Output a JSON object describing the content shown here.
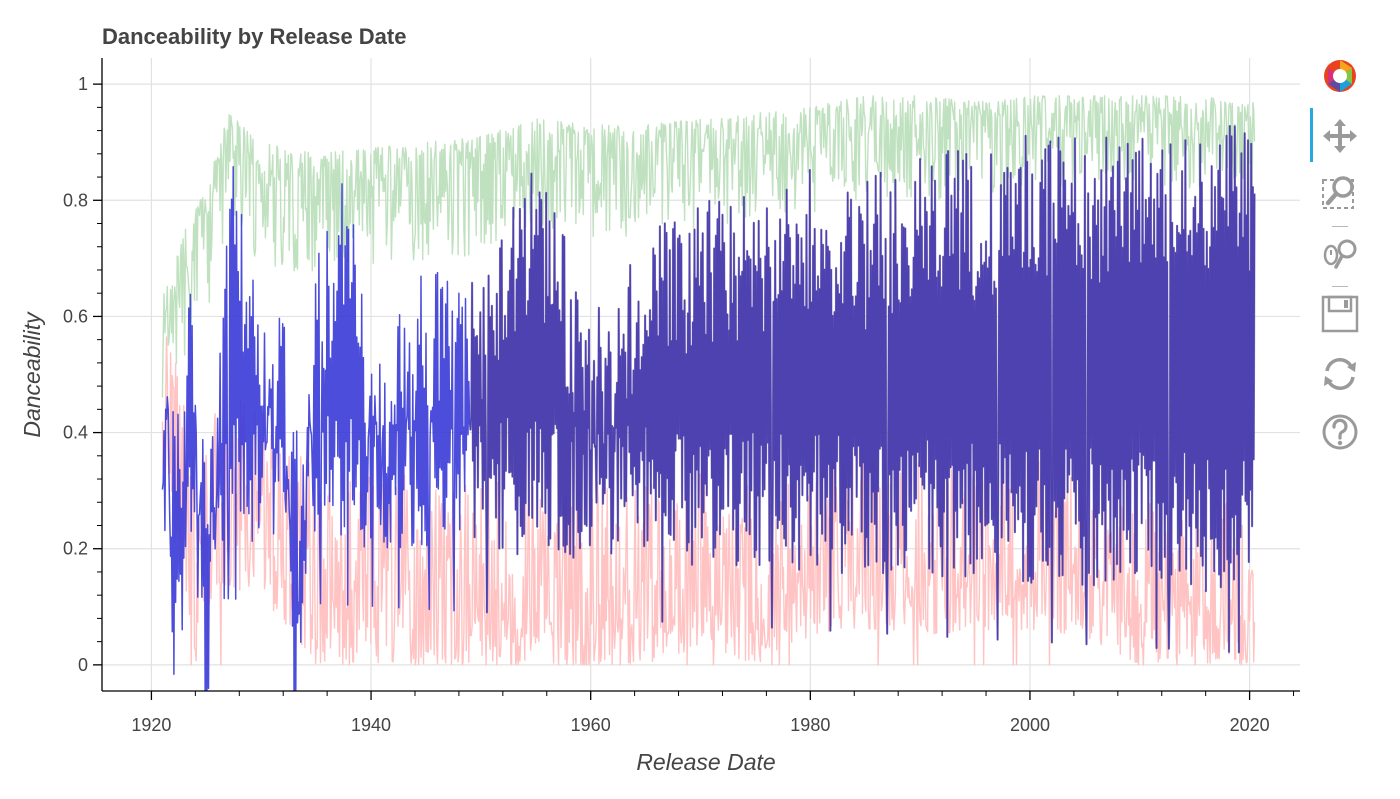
{
  "toolbar": {
    "tools": [
      {
        "name": "Bokeh logo",
        "icon": "bokeh-logo-icon",
        "active": false
      },
      {
        "name": "Pan",
        "icon": "pan-icon",
        "active": true
      },
      {
        "name": "Box Zoom",
        "icon": "box-zoom-icon",
        "active": false
      },
      {
        "name": "Wheel Zoom",
        "icon": "wheel-zoom-icon",
        "active": false
      },
      {
        "name": "Save",
        "icon": "save-icon",
        "active": false
      },
      {
        "name": "Reset",
        "icon": "reset-icon",
        "active": false
      },
      {
        "name": "Help",
        "icon": "help-icon",
        "active": false
      }
    ]
  },
  "chart_data": {
    "type": "line",
    "title": "Danceability by Release Date",
    "xlabel": "Release Date",
    "ylabel": "Danceability",
    "xlim": [
      1915.5,
      2025.5
    ],
    "ylim": [
      -0.045,
      1.045
    ],
    "x_ticks": [
      "1920",
      "1940",
      "1960",
      "1980",
      "2000",
      "2020"
    ],
    "y_ticks": [
      "0",
      "0.2",
      "0.4",
      "0.6",
      "0.8",
      "1"
    ],
    "grid": true,
    "legend": "none",
    "x_range_of_series": [
      1921,
      2020.5
    ],
    "colors": {
      "max": "#bcdfbc",
      "min": "#ffc0c0",
      "mean": "#3a3ad8",
      "overlay": "#4f3b8c"
    },
    "series": [
      {
        "color": "#bcdfbc",
        "values": [
          [
            1921,
            0.66
          ],
          [
            1922,
            0.71
          ],
          [
            1925,
            0.82
          ],
          [
            1927,
            0.95
          ],
          [
            1930,
            0.9
          ],
          [
            1935,
            0.88
          ],
          [
            1940,
            0.89
          ],
          [
            1945,
            0.9
          ],
          [
            1950,
            0.91
          ],
          [
            1955,
            0.94
          ],
          [
            1960,
            0.93
          ],
          [
            1965,
            0.93
          ],
          [
            1970,
            0.94
          ],
          [
            1975,
            0.95
          ],
          [
            1980,
            0.96
          ],
          [
            1985,
            0.98
          ],
          [
            1990,
            0.98
          ],
          [
            1995,
            0.97
          ],
          [
            2000,
            0.98
          ],
          [
            2005,
            0.98
          ],
          [
            2010,
            0.98
          ],
          [
            2015,
            0.98
          ],
          [
            2020,
            0.97
          ]
        ]
      },
      {
        "color": "#ffc0c0",
        "values": [
          [
            1921,
            0.29
          ],
          [
            1922,
            0.22
          ],
          [
            1924,
            0.0
          ],
          [
            1926,
            0.13
          ],
          [
            1930,
            0.12
          ],
          [
            1935,
            0.0
          ],
          [
            1940,
            0.0
          ],
          [
            1945,
            0.0
          ],
          [
            1950,
            0.0
          ],
          [
            1955,
            0.0
          ],
          [
            1960,
            0.0
          ],
          [
            1965,
            0.0
          ],
          [
            1970,
            0.03
          ],
          [
            1975,
            0.0
          ],
          [
            1980,
            0.05
          ],
          [
            1985,
            0.06
          ],
          [
            1990,
            0.05
          ],
          [
            1995,
            0.06
          ],
          [
            2000,
            0.06
          ],
          [
            2005,
            0.05
          ],
          [
            2010,
            0.0
          ],
          [
            2015,
            0.0
          ],
          [
            2020,
            0.0
          ]
        ]
      },
      {
        "color": "#3a3ad8",
        "values": [
          [
            1921,
            0.4
          ],
          [
            1921.5,
            0.53
          ],
          [
            1922,
            0.24
          ],
          [
            1923,
            0.23
          ],
          [
            1923.3,
            0.78
          ],
          [
            1925,
            0.12
          ],
          [
            1927.3,
            0.9
          ],
          [
            1930,
            0.61
          ],
          [
            1932,
            0.64
          ],
          [
            1933,
            0.07
          ],
          [
            1935,
            0.7
          ],
          [
            1938,
            0.88
          ],
          [
            1940,
            0.52
          ],
          [
            1945,
            0.7
          ],
          [
            1950,
            0.65
          ],
          [
            1955,
            0.89
          ],
          [
            1960,
            0.6
          ],
          [
            1965,
            0.75
          ],
          [
            1970,
            0.8
          ],
          [
            1975,
            0.82
          ],
          [
            1980,
            0.87
          ],
          [
            1985,
            0.83
          ],
          [
            1990,
            0.9
          ],
          [
            1995,
            0.88
          ],
          [
            2000,
            0.92
          ],
          [
            2005,
            0.91
          ],
          [
            2010,
            0.92
          ],
          [
            2015,
            0.93
          ],
          [
            2020,
            0.93
          ]
        ]
      }
    ]
  }
}
